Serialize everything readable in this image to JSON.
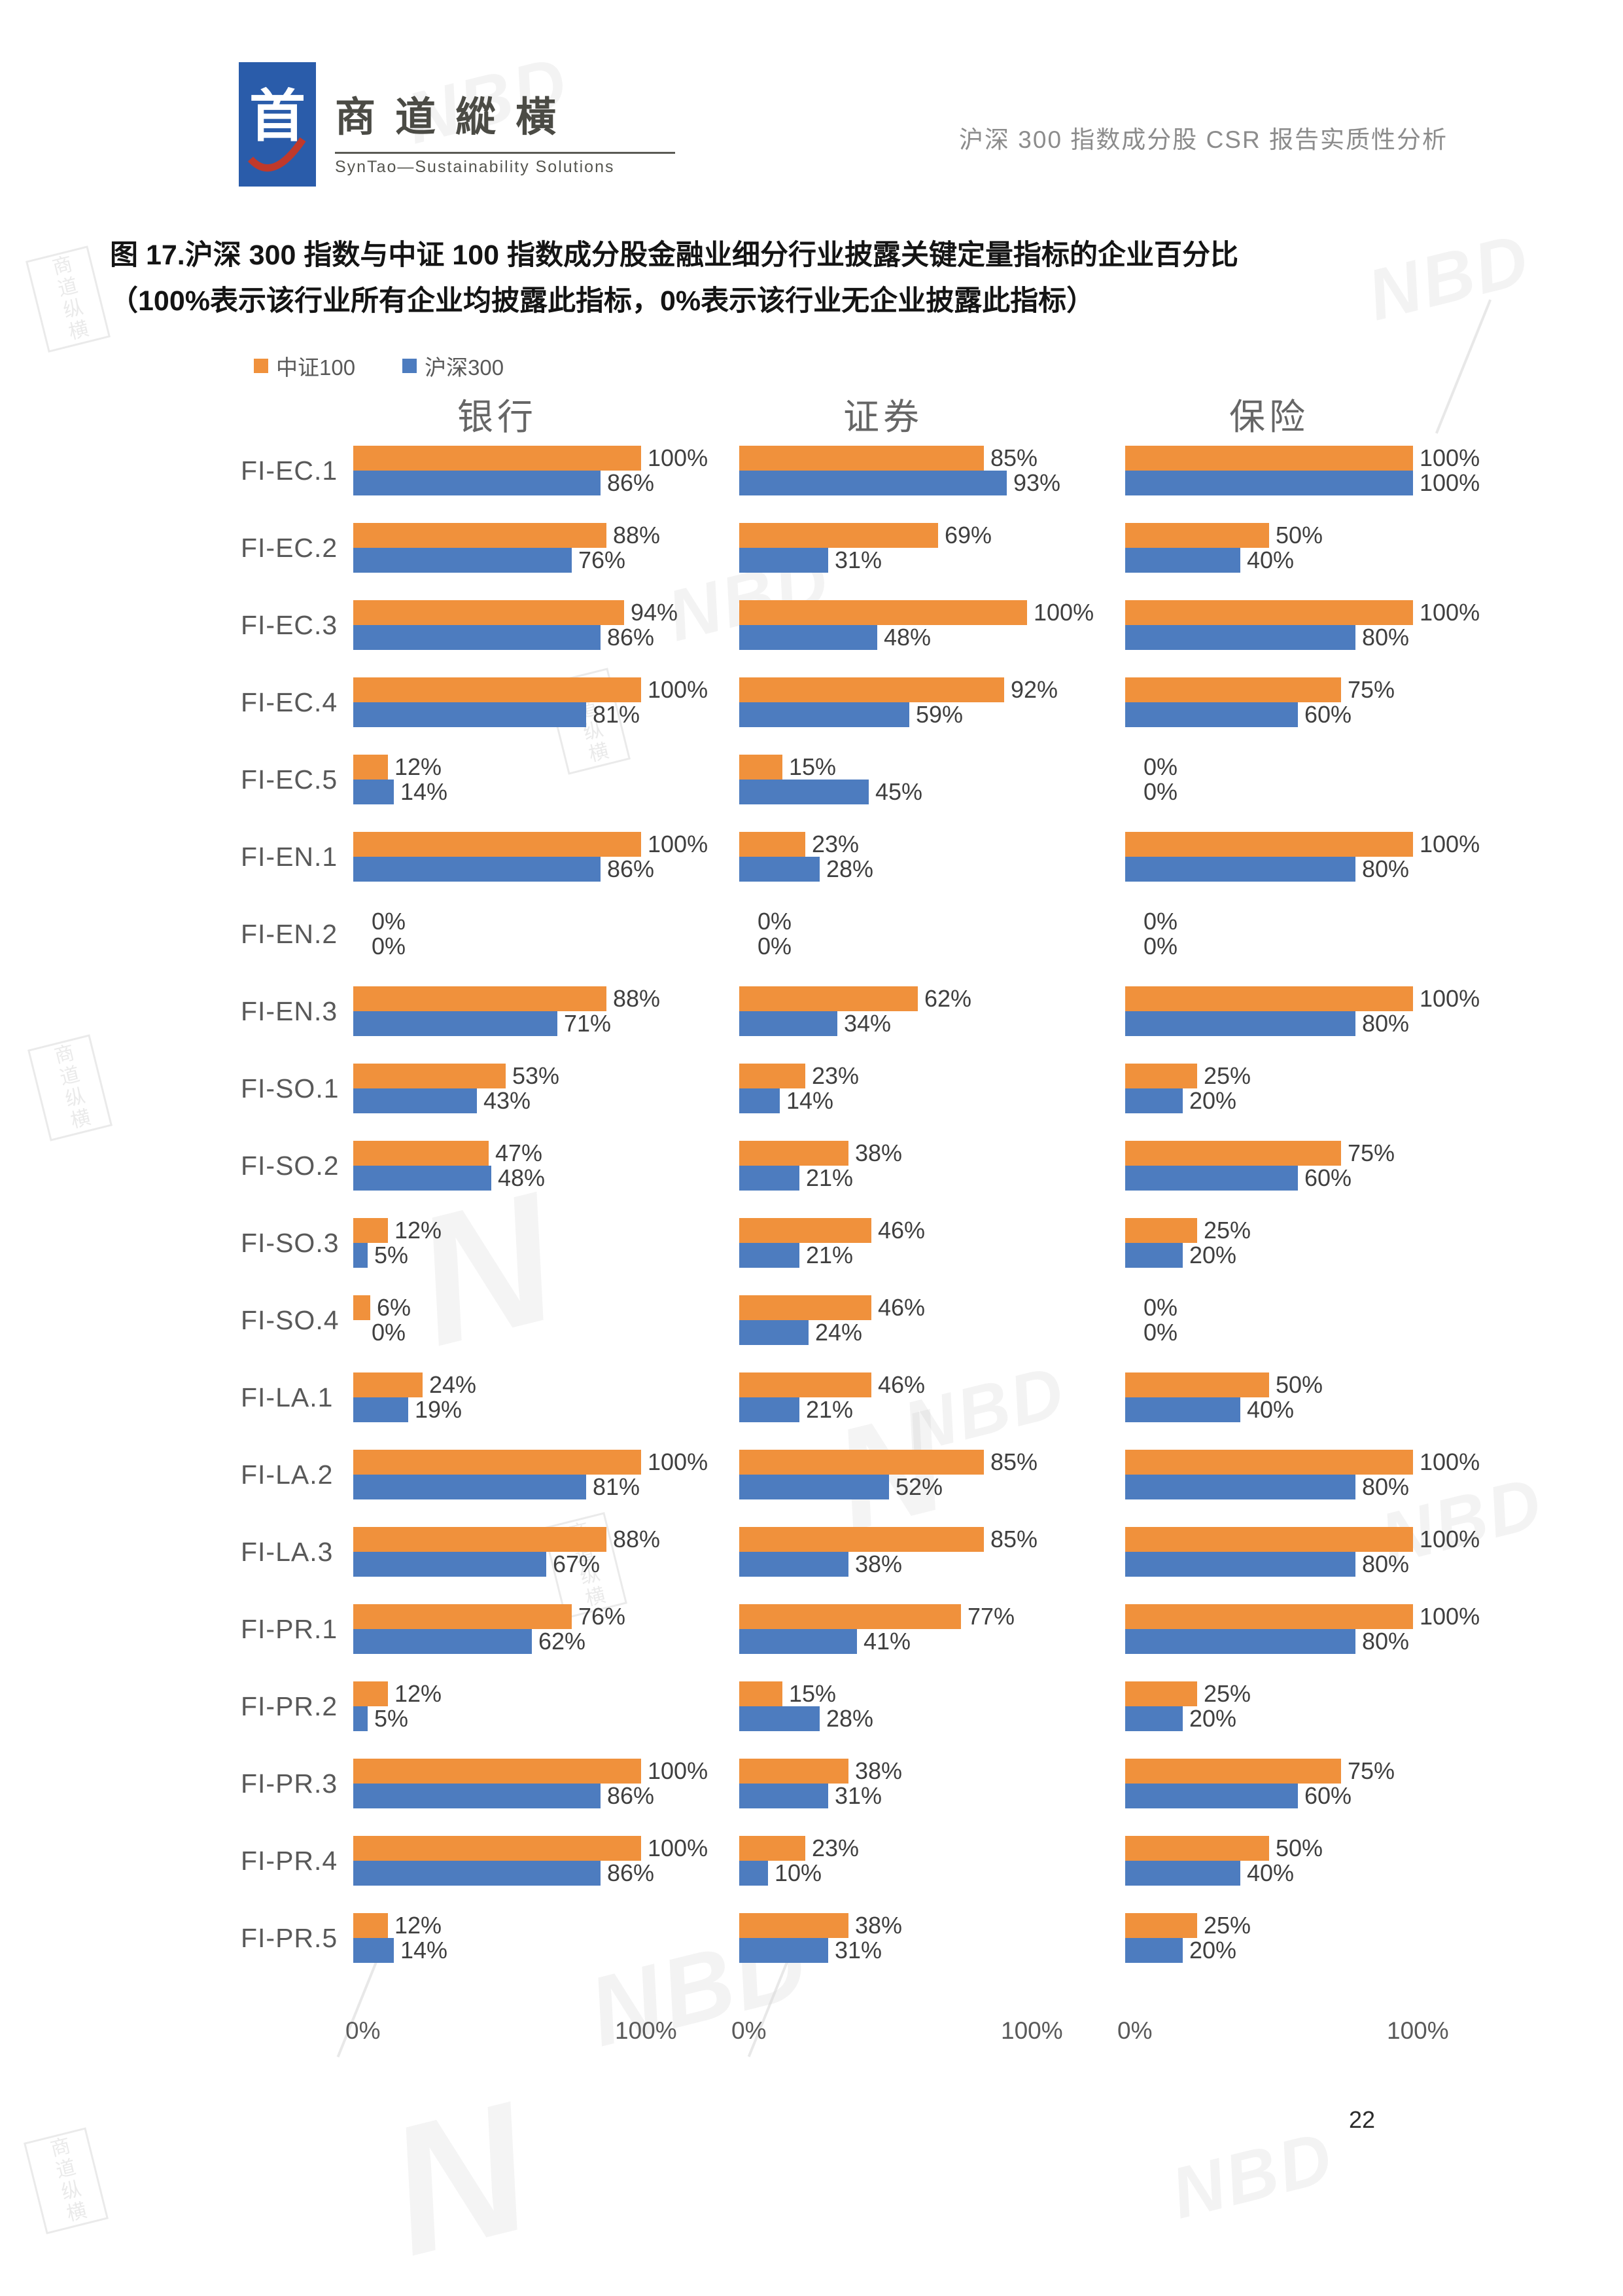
{
  "page": {
    "header": {
      "logo_cn": "商道縱橫",
      "logo_en": "SynTao—Sustainability Solutions",
      "logo_glyph": "首",
      "doc_title": "沪深 300 指数成分股 CSR 报告实质性分析"
    },
    "figure_title_line1": "图 17.沪深 300 指数与中证 100 指数成分股金融业细分行业披露关键定量指标的企业百分比",
    "figure_title_line2": "（100%表示该行业所有企业均披露此指标，0%表示该行业无企业披露此指标）",
    "page_number": "22",
    "watermarks": {
      "nbd": "NBD",
      "seal": "商道纵横"
    }
  },
  "chart_data": {
    "type": "bar",
    "orientation": "horizontal",
    "title": "图 17.沪深 300 指数与中证 100 指数成分股金融业细分行业披露关键定量指标的企业百分比",
    "subtitle": "（100%表示该行业所有企业均披露此指标，0%表示该行业无企业披露此指标）",
    "groups": [
      "银行",
      "证券",
      "保险"
    ],
    "legend": [
      {
        "name": "中证100",
        "color": "#F0913C"
      },
      {
        "name": "沪深300",
        "color": "#4D7CBF"
      }
    ],
    "axis": {
      "min_label": "0%",
      "max_label": "100%",
      "xlim": [
        0,
        100
      ],
      "unit": "%"
    },
    "categories": [
      "FI-EC.1",
      "FI-EC.2",
      "FI-EC.3",
      "FI-EC.4",
      "FI-EC.5",
      "FI-EN.1",
      "FI-EN.2",
      "FI-EN.3",
      "FI-SO.1",
      "FI-SO.2",
      "FI-SO.3",
      "FI-SO.4",
      "FI-LA.1",
      "FI-LA.2",
      "FI-LA.3",
      "FI-PR.1",
      "FI-PR.2",
      "FI-PR.3",
      "FI-PR.4",
      "FI-PR.5"
    ],
    "series_note": "per row: [中证100, 沪深300] values in percent for each industry group",
    "rows": [
      {
        "label": "FI-EC.1",
        "bank": [
          100,
          86
        ],
        "sec": [
          85,
          93
        ],
        "ins": [
          100,
          100
        ]
      },
      {
        "label": "FI-EC.2",
        "bank": [
          88,
          76
        ],
        "sec": [
          69,
          31
        ],
        "ins": [
          50,
          40
        ]
      },
      {
        "label": "FI-EC.3",
        "bank": [
          94,
          86
        ],
        "sec": [
          100,
          48
        ],
        "ins": [
          100,
          80
        ]
      },
      {
        "label": "FI-EC.4",
        "bank": [
          100,
          81
        ],
        "sec": [
          92,
          59
        ],
        "ins": [
          75,
          60
        ]
      },
      {
        "label": "FI-EC.5",
        "bank": [
          12,
          14
        ],
        "sec": [
          15,
          45
        ],
        "ins": [
          0,
          0
        ]
      },
      {
        "label": "FI-EN.1",
        "bank": [
          100,
          86
        ],
        "sec": [
          23,
          28
        ],
        "ins": [
          100,
          80
        ]
      },
      {
        "label": "FI-EN.2",
        "bank": [
          0,
          0
        ],
        "sec": [
          0,
          0
        ],
        "ins": [
          0,
          0
        ]
      },
      {
        "label": "FI-EN.3",
        "bank": [
          88,
          71
        ],
        "sec": [
          62,
          34
        ],
        "ins": [
          100,
          80
        ]
      },
      {
        "label": "FI-SO.1",
        "bank": [
          53,
          43
        ],
        "sec": [
          23,
          14
        ],
        "ins": [
          25,
          20
        ]
      },
      {
        "label": "FI-SO.2",
        "bank": [
          47,
          48
        ],
        "sec": [
          38,
          21
        ],
        "ins": [
          75,
          60
        ]
      },
      {
        "label": "FI-SO.3",
        "bank": [
          12,
          5
        ],
        "sec": [
          46,
          21
        ],
        "ins": [
          25,
          20
        ]
      },
      {
        "label": "FI-SO.4",
        "bank": [
          6,
          0
        ],
        "sec": [
          46,
          24
        ],
        "ins": [
          0,
          0
        ]
      },
      {
        "label": "FI-LA.1",
        "bank": [
          24,
          19
        ],
        "sec": [
          46,
          21
        ],
        "ins": [
          50,
          40
        ]
      },
      {
        "label": "FI-LA.2",
        "bank": [
          100,
          81
        ],
        "sec": [
          85,
          52
        ],
        "ins": [
          100,
          80
        ]
      },
      {
        "label": "FI-LA.3",
        "bank": [
          88,
          67
        ],
        "sec": [
          85,
          38
        ],
        "ins": [
          100,
          80
        ]
      },
      {
        "label": "FI-PR.1",
        "bank": [
          76,
          62
        ],
        "sec": [
          77,
          41
        ],
        "ins": [
          100,
          80
        ]
      },
      {
        "label": "FI-PR.2",
        "bank": [
          12,
          5
        ],
        "sec": [
          15,
          28
        ],
        "ins": [
          25,
          20
        ]
      },
      {
        "label": "FI-PR.3",
        "bank": [
          100,
          86
        ],
        "sec": [
          38,
          31
        ],
        "ins": [
          75,
          60
        ]
      },
      {
        "label": "FI-PR.4",
        "bank": [
          100,
          86
        ],
        "sec": [
          23,
          10
        ],
        "ins": [
          50,
          40
        ]
      },
      {
        "label": "FI-PR.5",
        "bank": [
          12,
          14
        ],
        "sec": [
          38,
          31
        ],
        "ins": [
          25,
          20
        ]
      }
    ]
  }
}
